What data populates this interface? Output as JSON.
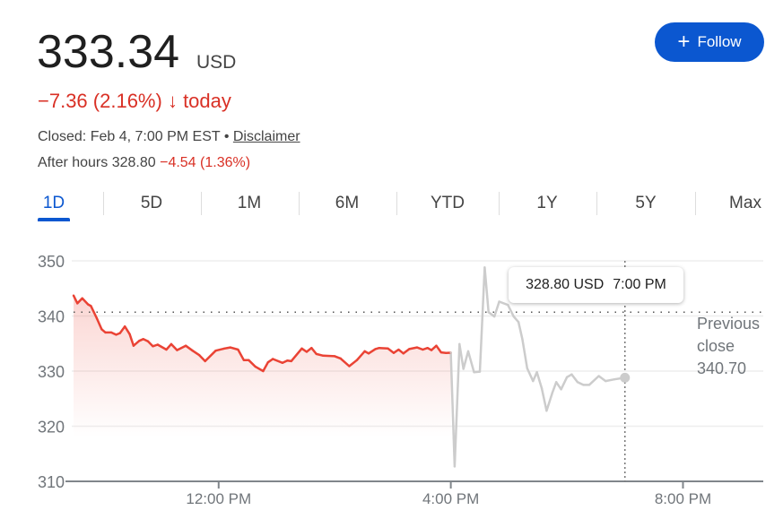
{
  "quote": {
    "price": "333.34",
    "currency": "USD",
    "change": "−7.36 (2.16%)",
    "change_arrow": "arrow-down-icon",
    "change_suffix": "today",
    "closed_text": "Closed: Feb 4, 7:00 PM EST",
    "bullet": "•",
    "disclaimer": "Disclaimer",
    "after_hours_label": "After hours 328.80",
    "after_hours_change": "−4.54 (1.36%)"
  },
  "follow_button": {
    "icon": "plus-icon",
    "label": "Follow"
  },
  "tabs": [
    {
      "label": "1D",
      "active": true
    },
    {
      "label": "5D"
    },
    {
      "label": "1M"
    },
    {
      "label": "6M"
    },
    {
      "label": "YTD"
    },
    {
      "label": "1Y"
    },
    {
      "label": "5Y"
    },
    {
      "label": "Max"
    }
  ],
  "tooltip": {
    "value": "328.80 USD",
    "time": "7:00 PM"
  },
  "previous_close": {
    "line1": "Previous",
    "line2": "close",
    "value": "340.70"
  },
  "colors": {
    "regular": "#ea4335",
    "after_hours": "#cccccc",
    "accent": "#0b57d0",
    "negative": "#d93025"
  },
  "chart_data": {
    "type": "line",
    "xlim": [
      "9:30",
      "21:23"
    ],
    "ylim": [
      310,
      350
    ],
    "yticks": [
      310,
      320,
      330,
      340,
      350
    ],
    "xticks": [
      {
        "t": "12:00",
        "label": "12:00 PM"
      },
      {
        "t": "16:00",
        "label": "4:00 PM"
      },
      {
        "t": "20:00",
        "label": "8:00 PM"
      }
    ],
    "grid": true,
    "reference_line": {
      "value": 340.7,
      "label": "Previous close"
    },
    "crosshair_time": "19:00",
    "series": [
      {
        "session": "regular",
        "points": [
          [
            "9:30",
            343.7
          ],
          [
            "9:34",
            342.3
          ],
          [
            "9:39",
            343.2
          ],
          [
            "9:45",
            342.1
          ],
          [
            "9:48",
            341.8
          ],
          [
            "9:54",
            339.6
          ],
          [
            "9:59",
            337.6
          ],
          [
            "10:03",
            337.0
          ],
          [
            "10:09",
            337.0
          ],
          [
            "10:14",
            336.6
          ],
          [
            "10:18",
            336.9
          ],
          [
            "10:23",
            338.1
          ],
          [
            "10:28",
            336.7
          ],
          [
            "10:32",
            334.6
          ],
          [
            "10:38",
            335.5
          ],
          [
            "10:42",
            335.8
          ],
          [
            "10:47",
            335.4
          ],
          [
            "10:52",
            334.5
          ],
          [
            "10:57",
            334.8
          ],
          [
            "11:06",
            333.9
          ],
          [
            "11:11",
            334.9
          ],
          [
            "11:17",
            333.8
          ],
          [
            "11:26",
            334.6
          ],
          [
            "11:33",
            333.7
          ],
          [
            "11:40",
            332.9
          ],
          [
            "11:46",
            331.8
          ],
          [
            "11:57",
            333.7
          ],
          [
            "12:06",
            334.1
          ],
          [
            "12:12",
            334.3
          ],
          [
            "12:20",
            333.9
          ],
          [
            "12:26",
            332.0
          ],
          [
            "12:31",
            332.0
          ],
          [
            "12:38",
            330.8
          ],
          [
            "12:46",
            330.0
          ],
          [
            "12:51",
            331.6
          ],
          [
            "12:56",
            332.2
          ],
          [
            "13:06",
            331.5
          ],
          [
            "13:11",
            331.9
          ],
          [
            "13:15",
            331.8
          ],
          [
            "13:26",
            334.1
          ],
          [
            "13:31",
            333.5
          ],
          [
            "13:36",
            334.2
          ],
          [
            "13:41",
            333.1
          ],
          [
            "13:48",
            332.8
          ],
          [
            "14:00",
            332.7
          ],
          [
            "14:06",
            332.3
          ],
          [
            "14:15",
            330.9
          ],
          [
            "14:23",
            332.0
          ],
          [
            "14:31",
            333.6
          ],
          [
            "14:35",
            333.2
          ],
          [
            "14:42",
            334.0
          ],
          [
            "14:46",
            334.2
          ],
          [
            "14:55",
            334.1
          ],
          [
            "15:01",
            333.3
          ],
          [
            "15:06",
            333.9
          ],
          [
            "15:11",
            333.2
          ],
          [
            "15:17",
            334.0
          ],
          [
            "15:25",
            334.3
          ],
          [
            "15:31",
            333.9
          ],
          [
            "15:36",
            334.2
          ],
          [
            "15:40",
            333.8
          ],
          [
            "15:45",
            334.6
          ],
          [
            "15:50",
            333.4
          ],
          [
            "15:55",
            333.3
          ],
          [
            "16:00",
            333.34
          ]
        ]
      },
      {
        "session": "after_hours",
        "points": [
          [
            "16:00",
            333.34
          ],
          [
            "16:04",
            312.7
          ],
          [
            "16:09",
            334.9
          ],
          [
            "16:13",
            330.4
          ],
          [
            "16:18",
            333.6
          ],
          [
            "16:24",
            329.8
          ],
          [
            "16:30",
            329.9
          ],
          [
            "16:35",
            348.8
          ],
          [
            "16:39",
            340.7
          ],
          [
            "16:45",
            339.9
          ],
          [
            "16:50",
            342.6
          ],
          [
            "16:59",
            342.0
          ],
          [
            "17:05",
            339.9
          ],
          [
            "17:10",
            338.9
          ],
          [
            "17:14",
            335.8
          ],
          [
            "17:19",
            330.5
          ],
          [
            "17:25",
            328.2
          ],
          [
            "17:29",
            329.8
          ],
          [
            "17:34",
            326.9
          ],
          [
            "17:39",
            322.8
          ],
          [
            "17:45",
            326.1
          ],
          [
            "17:49",
            328.0
          ],
          [
            "17:54",
            326.7
          ],
          [
            "18:00",
            328.9
          ],
          [
            "18:05",
            329.4
          ],
          [
            "18:11",
            328.0
          ],
          [
            "18:17",
            327.5
          ],
          [
            "18:23",
            327.5
          ],
          [
            "18:33",
            329.1
          ],
          [
            "18:40",
            328.2
          ],
          [
            "18:49",
            328.5
          ],
          [
            "19:00",
            328.8
          ]
        ]
      }
    ]
  }
}
